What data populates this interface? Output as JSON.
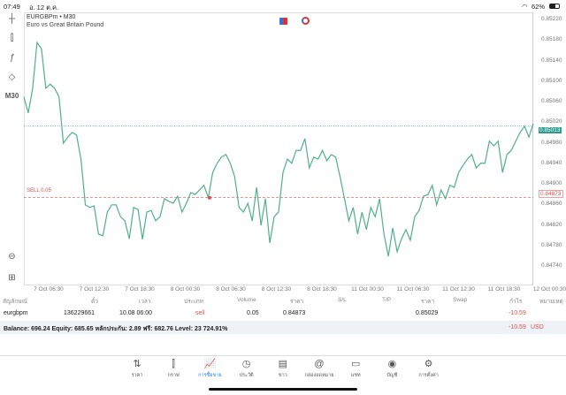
{
  "status": {
    "time": "07:49",
    "date": "อ. 12 ต.ค.",
    "battery": "62%"
  },
  "chart": {
    "symbol": "EURGBPm • M30",
    "description": "Euro vs Great Britain Pound",
    "timeframe": "M30",
    "sell_label": "SELL 0.05",
    "sell_price": "0.84873",
    "current_price": "0.85013"
  },
  "chart_data": {
    "type": "line",
    "title": "EURGBPm • M30",
    "ylim": [
      0.8471,
      0.8523
    ],
    "y_ticks": [
      "0.85220",
      "0.85180",
      "0.85140",
      "0.85100",
      "0.85060",
      "0.85020",
      "0.84980",
      "0.84940",
      "0.84900",
      "0.84860",
      "0.84820",
      "0.84780",
      "0.84740"
    ],
    "x_ticks": [
      "7 Oct 06:30",
      "7 Oct 12:30",
      "7 Oct 18:30",
      "8 Oct 00:30",
      "8 Oct 06:30",
      "8 Oct 12:30",
      "8 Oct 18:30",
      "11 Oct 00:30",
      "11 Oct 06:30",
      "11 Oct 12:30",
      "11 Oct 18:30",
      "12 Oct 00:30"
    ],
    "values": [
      0.85069,
      0.85038,
      0.85086,
      0.85175,
      0.85163,
      0.85086,
      0.85094,
      0.85086,
      0.85069,
      0.84979,
      0.84991,
      0.85,
      0.84995,
      0.84948,
      0.84859,
      0.84854,
      0.84857,
      0.84802,
      0.84799,
      0.84845,
      0.84859,
      0.84859,
      0.84836,
      0.84828,
      0.84793,
      0.84854,
      0.8485,
      0.84792,
      0.84845,
      0.84848,
      0.84828,
      0.84836,
      0.84871,
      0.84866,
      0.84862,
      0.84876,
      0.84845,
      0.84862,
      0.84883,
      0.84879,
      0.84888,
      0.84897,
      0.84873,
      0.84922,
      0.8494,
      0.84952,
      0.84957,
      0.8494,
      0.84914,
      0.84854,
      0.84845,
      0.84862,
      0.84828,
      0.84893,
      0.84819,
      0.84871,
      0.84785,
      0.84836,
      0.84845,
      0.84922,
      0.84948,
      0.8494,
      0.84965,
      0.84965,
      0.84988,
      0.84931,
      0.84952,
      0.84948,
      0.84965,
      0.84945,
      0.84957,
      0.84952,
      0.84914,
      0.84871,
      0.84828,
      0.84854,
      0.84802,
      0.84845,
      0.84811,
      0.84854,
      0.84836,
      0.84871,
      0.84802,
      0.84759,
      0.84814,
      0.84768,
      0.84793,
      0.84811,
      0.8479,
      0.84836,
      0.84848,
      0.84876,
      0.84879,
      0.84897,
      0.84859,
      0.84888,
      0.84871,
      0.84897,
      0.84893,
      0.84922,
      0.84936,
      0.84948,
      0.84957,
      0.84931,
      0.8494,
      0.8494,
      0.84983,
      0.84974,
      0.84983,
      0.84922,
      0.84957,
      0.84965,
      0.84983,
      0.85,
      0.85012,
      0.84991,
      0.85017
    ],
    "line_color": "#4fb08a",
    "sell_color": "#e05050"
  },
  "table": {
    "headers": [
      "สัญลักษณ์",
      "ตั๋ว",
      "เวลา",
      "ประเภท",
      "Volume",
      "ราคา",
      "S/L",
      "T/P",
      "ราคา",
      "Swap",
      "กำไร",
      "หมายเหตุ"
    ],
    "row": {
      "symbol": "eurgbpm",
      "ticket": "136229661",
      "time": "10.08 06:00",
      "type": "sell",
      "volume": "0.05",
      "open_price": "0.84873",
      "current_price": "0.85029",
      "profit": "-10.59"
    }
  },
  "balance": {
    "text": "Balance: 696.24 Equity: 685.65 หลักประกัน: 2.89 ฟรี: 682.76 Level: 23 724.91%",
    "profit": "-10.59",
    "currency": "USD"
  },
  "nav": [
    "ราคา",
    "กราฟ",
    "การซื้อขาย",
    "ประวัติ",
    "ข่าว",
    "กล่องจดหมาย",
    "แชท",
    "บัญชี",
    "การตั้งค่า"
  ]
}
